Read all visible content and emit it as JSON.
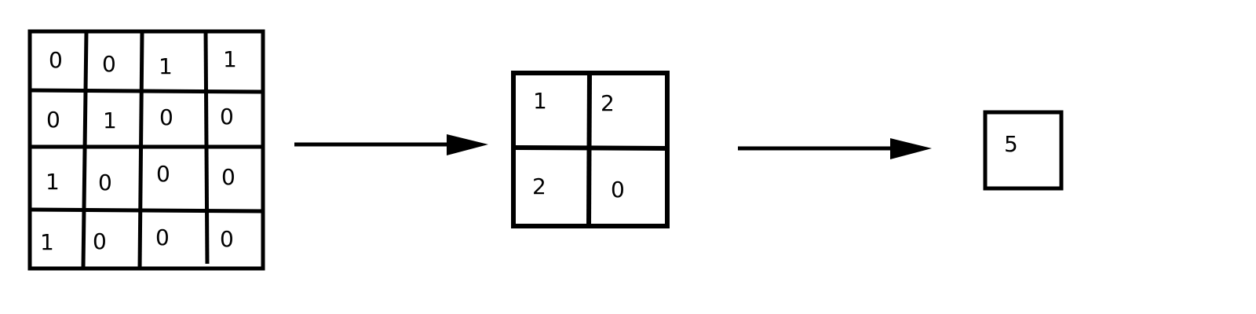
{
  "grid_4x4": [
    [
      "0",
      "0",
      "1",
      "1"
    ],
    [
      "0",
      "1",
      "0",
      "0"
    ],
    [
      "1",
      "0",
      "0",
      "0"
    ],
    [
      "1",
      "0",
      "0",
      "0"
    ]
  ],
  "grid_2x2": [
    [
      "1",
      "2"
    ],
    [
      "2",
      "0"
    ]
  ],
  "grid_1x1": [
    [
      "5"
    ]
  ],
  "colors": {
    "stroke": "#000000",
    "background": "#ffffff"
  }
}
